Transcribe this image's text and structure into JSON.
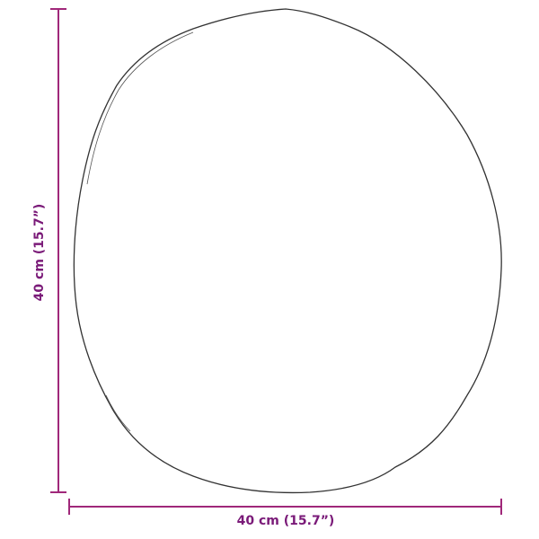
{
  "dimensions": {
    "width_label": "40 cm (15.7”)",
    "height_label": "40 cm (15.7”)"
  },
  "colors": {
    "dimension_line": "#a0287a",
    "dimension_text": "#7a1a78",
    "outline": "#333333"
  },
  "product": {
    "shape": "round mirror outline"
  }
}
